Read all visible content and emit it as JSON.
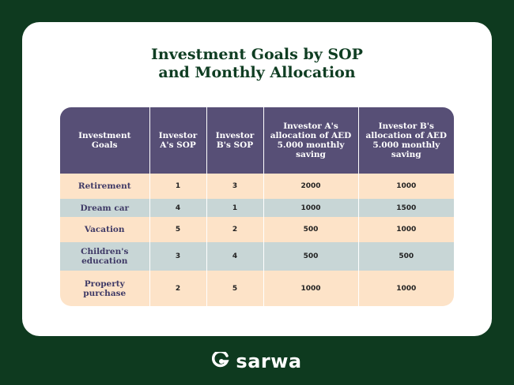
{
  "title": {
    "line1": "Investment Goals by SOP",
    "line2": "and Monthly Allocation"
  },
  "table": {
    "headers": [
      "Investment Goals",
      "Investor A's SOP",
      "Investor B's SOP",
      "Investor A's allocation of AED 5.000 monthly saving",
      "Investor B's allocation of AED 5.000 monthly saving"
    ],
    "rows": [
      [
        "Retirement",
        "1",
        "3",
        "2000",
        "1000"
      ],
      [
        "Dream car",
        "4",
        "1",
        "1000",
        "1500"
      ],
      [
        "Vacation",
        "5",
        "2",
        "500",
        "1000"
      ],
      [
        "Children's education",
        "3",
        "4",
        "500",
        "500"
      ],
      [
        "Property purchase",
        "2",
        "5",
        "1000",
        "1000"
      ]
    ]
  },
  "brand": {
    "name": "sarwa",
    "logo_icon": "sarwa-s-logo-icon"
  },
  "colors": {
    "background": "#0e3a1f",
    "header": "#574f76",
    "row_peach": "#fde3c8",
    "row_gray": "#c8d6d6"
  }
}
